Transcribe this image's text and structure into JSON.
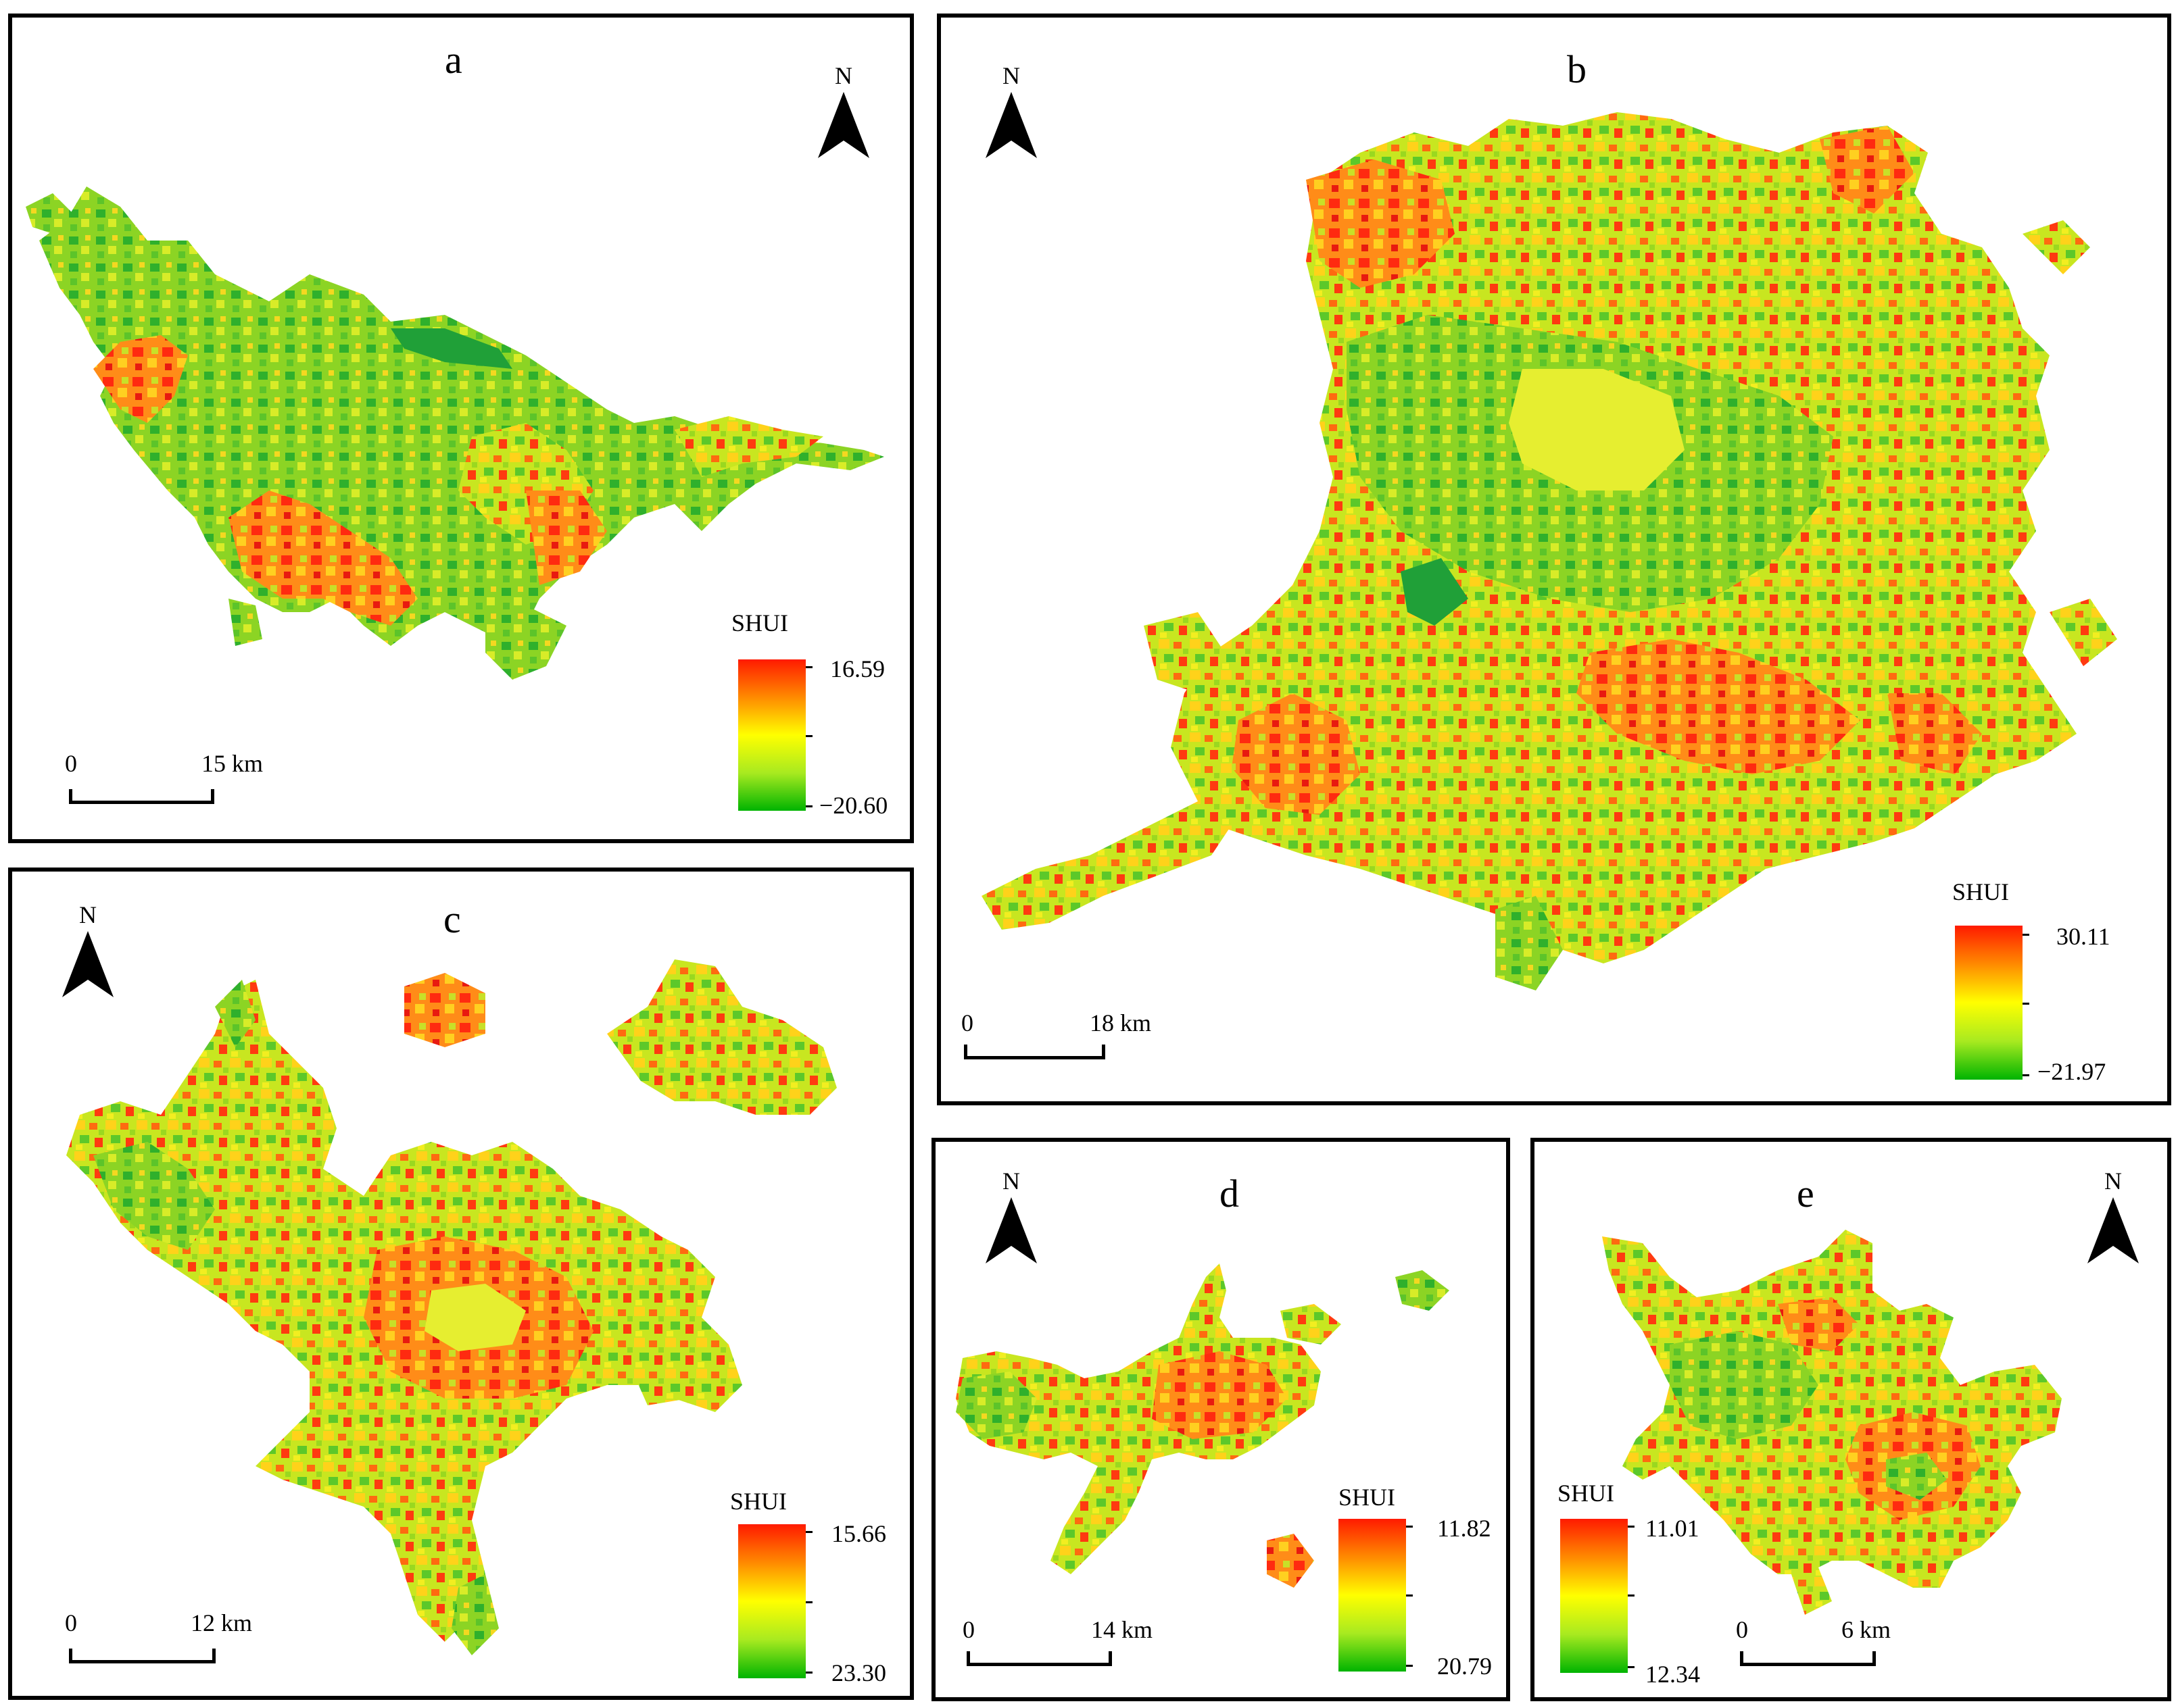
{
  "compass_label": "N",
  "legend_colors": [
    "#ff1a00",
    "#ff8a00",
    "#ffff00",
    "#a8ea20",
    "#00b400"
  ],
  "panels": [
    {
      "id": "a",
      "letter": "a",
      "legend_title": "SHUI",
      "max": "16.59",
      "min": "−20.60",
      "scale_zero": "0",
      "scale_dist": "15 km"
    },
    {
      "id": "b",
      "letter": "b",
      "legend_title": "SHUI",
      "max": "30.11",
      "min": "−21.97",
      "scale_zero": "0",
      "scale_dist": "18  km"
    },
    {
      "id": "c",
      "letter": "c",
      "legend_title": "SHUI",
      "max": "15.66",
      "min": "23.30",
      "scale_zero": "0",
      "scale_dist": "12 km"
    },
    {
      "id": "d",
      "letter": "d",
      "legend_title": "SHUI",
      "max": "11.82",
      "min": "20.79",
      "scale_zero": "0",
      "scale_dist": "14 km"
    },
    {
      "id": "e",
      "letter": "e",
      "legend_title": "SHUI",
      "max": "11.01",
      "min": "12.34",
      "scale_zero": "0",
      "scale_dist": "6 km"
    }
  ]
}
